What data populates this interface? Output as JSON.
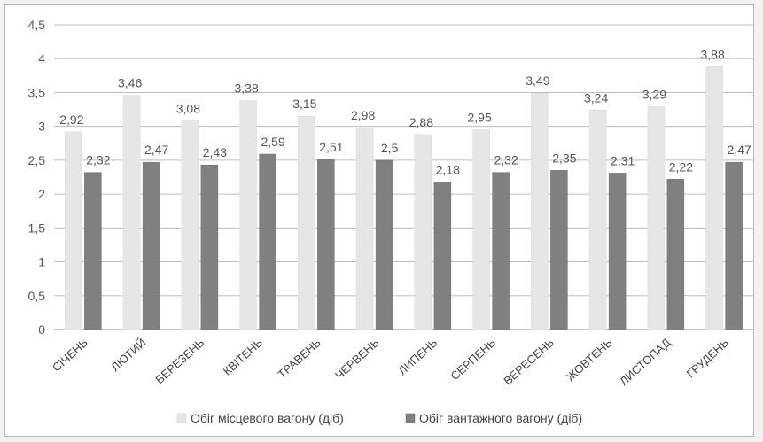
{
  "chart_data": {
    "type": "bar",
    "categories": [
      "СІЧЕНЬ",
      "ЛЮТИЙ",
      "БЕРЕЗЕНЬ",
      "КВІТЕНЬ",
      "ТРАВЕНЬ",
      "ЧЕРВЕНЬ",
      "ЛИПЕНЬ",
      "СЕРПЕНЬ",
      "ВЕРЕСЕНЬ",
      "ЖОВТЕНЬ",
      "ЛИСТОПАД",
      "ГРУДЕНЬ"
    ],
    "series": [
      {
        "name": "Обіг місцевого вагону (діб)",
        "color": "#e6e6e6",
        "values": [
          2.92,
          3.46,
          3.08,
          3.38,
          3.15,
          2.98,
          2.88,
          2.95,
          3.49,
          3.24,
          3.29,
          3.88
        ],
        "labels": [
          "2,92",
          "3,46",
          "3,08",
          "3,38",
          "3,15",
          "2,98",
          "2,88",
          "2,95",
          "3,49",
          "3,24",
          "3,29",
          "3,88"
        ]
      },
      {
        "name": "Обіг вантажного вагону (діб)",
        "color": "#808080",
        "values": [
          2.32,
          2.47,
          2.43,
          2.59,
          2.51,
          2.5,
          2.18,
          2.32,
          2.35,
          2.31,
          2.22,
          2.47
        ],
        "labels": [
          "2,32",
          "2,47",
          "2,43",
          "2,59",
          "2,51",
          "2,5",
          "2,18",
          "2,32",
          "2,35",
          "2,31",
          "2,22",
          "2,47"
        ]
      }
    ],
    "ylim": [
      0,
      4.5
    ],
    "yticks": [
      0,
      0.5,
      1,
      1.5,
      2,
      2.5,
      3,
      3.5,
      4,
      4.5
    ],
    "ytick_labels": [
      "0",
      "0,5",
      "1",
      "1,5",
      "2",
      "2,5",
      "3",
      "3,5",
      "4",
      "4,5"
    ],
    "grid": true,
    "legend_position": "bottom"
  }
}
